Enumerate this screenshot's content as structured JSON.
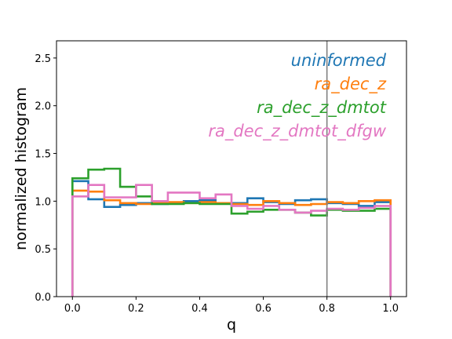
{
  "chart_data": {
    "type": "step-histogram",
    "xlabel": "q",
    "ylabel": "normalized histogram",
    "xlim": [
      -0.05,
      1.05
    ],
    "ylim": [
      0.0,
      2.68
    ],
    "xticks": [
      "0.0",
      "0.2",
      "0.4",
      "0.6",
      "0.8",
      "1.0"
    ],
    "yticks": [
      "0.0",
      "0.5",
      "1.0",
      "1.5",
      "2.0",
      "2.5"
    ],
    "vline": 0.8,
    "vline_color": "#808080",
    "legend_position": "top-right",
    "bin_edges": [
      0.0,
      0.05,
      0.1,
      0.15,
      0.2,
      0.25,
      0.3,
      0.35,
      0.4,
      0.45,
      0.5,
      0.55,
      0.6,
      0.65,
      0.7,
      0.75,
      0.8,
      0.85,
      0.9,
      0.95,
      1.0
    ],
    "series": [
      {
        "name": "uninformed",
        "color": "#1f77b4",
        "values": [
          1.21,
          1.02,
          0.94,
          0.96,
          0.98,
          0.97,
          0.98,
          1.0,
          1.01,
          0.98,
          0.98,
          1.03,
          0.99,
          0.97,
          1.01,
          1.02,
          0.98,
          0.97,
          0.95,
          0.99
        ]
      },
      {
        "name": "ra_dec_z",
        "color": "#ff7f0e",
        "values": [
          1.11,
          1.1,
          1.01,
          0.98,
          0.97,
          0.98,
          0.99,
          0.98,
          0.99,
          0.98,
          0.97,
          0.96,
          1.0,
          0.98,
          0.96,
          0.97,
          0.99,
          0.98,
          1.0,
          1.01
        ]
      },
      {
        "name": "ra_dec_z_dmtot",
        "color": "#2ca02c",
        "values": [
          1.24,
          1.33,
          1.34,
          1.15,
          1.05,
          0.97,
          0.97,
          0.98,
          0.97,
          0.97,
          0.87,
          0.89,
          0.91,
          0.91,
          0.88,
          0.85,
          0.91,
          0.9,
          0.9,
          0.92
        ]
      },
      {
        "name": "ra_dec_z_dmtot_dfgw",
        "color": "#e377c2",
        "values": [
          1.05,
          1.17,
          1.04,
          1.04,
          1.17,
          1.0,
          1.09,
          1.09,
          1.03,
          1.07,
          0.95,
          0.92,
          0.95,
          0.91,
          0.88,
          0.9,
          0.92,
          0.91,
          0.93,
          0.95
        ]
      }
    ]
  }
}
